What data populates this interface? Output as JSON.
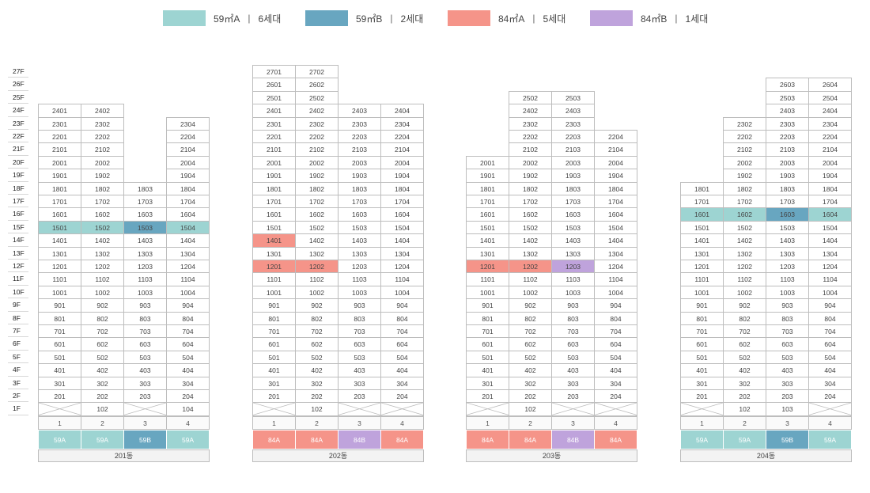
{
  "colors": {
    "59A": "#9dd4d2",
    "59B": "#68a6c0",
    "84A": "#f59489",
    "84B": "#bfa3dc"
  },
  "legend": [
    {
      "type": "59A",
      "label": "59㎡A",
      "units": "6세대"
    },
    {
      "type": "59B",
      "label": "59㎡B",
      "units": "2세대"
    },
    {
      "type": "84A",
      "label": "84㎡A",
      "units": "5세대"
    },
    {
      "type": "84B",
      "label": "84㎡B",
      "units": "1세대"
    }
  ],
  "floors": [
    "27F",
    "26F",
    "25F",
    "24F",
    "23F",
    "22F",
    "21F",
    "20F",
    "19F",
    "18F",
    "17F",
    "16F",
    "15F",
    "14F",
    "13F",
    "12F",
    "11F",
    "10F",
    "9F",
    "8F",
    "7F",
    "6F",
    "5F",
    "4F",
    "3F",
    "2F",
    "1F"
  ],
  "buildings": [
    {
      "name": "201동",
      "line_labels": [
        "1",
        "2",
        "3",
        "4"
      ],
      "line_types": [
        "59A",
        "59A",
        "59B",
        "59A"
      ],
      "line_ranges": [
        [
          2,
          24
        ],
        [
          1,
          24
        ],
        [
          2,
          18
        ],
        [
          1,
          23
        ]
      ],
      "highlights": {
        "1501": "59A",
        "1502": "59A",
        "1503": "59B",
        "1504": "59A"
      }
    },
    {
      "name": "202동",
      "line_labels": [
        "1",
        "2",
        "3",
        "4"
      ],
      "line_types": [
        "84A",
        "84A",
        "84B",
        "84A"
      ],
      "line_ranges": [
        [
          2,
          27
        ],
        [
          1,
          27
        ],
        [
          2,
          24
        ],
        [
          2,
          24
        ]
      ],
      "highlights": {
        "1401": "84A",
        "1201": "84A",
        "1202": "84A"
      }
    },
    {
      "name": "203동",
      "line_labels": [
        "1",
        "2",
        "3",
        "4"
      ],
      "line_types": [
        "84A",
        "84A",
        "84B",
        "84A"
      ],
      "line_ranges": [
        [
          2,
          20
        ],
        [
          1,
          25
        ],
        [
          2,
          25
        ],
        [
          2,
          22
        ]
      ],
      "highlights": {
        "1201": "84A",
        "1202": "84A",
        "1203": "84B"
      }
    },
    {
      "name": "204동",
      "line_labels": [
        "1",
        "2",
        "3",
        "4"
      ],
      "line_types": [
        "59A",
        "59A",
        "59B",
        "59A"
      ],
      "line_ranges": [
        [
          2,
          18
        ],
        [
          1,
          23
        ],
        [
          1,
          26
        ],
        [
          2,
          26
        ]
      ],
      "highlights": {
        "1601": "59A",
        "1602": "59A",
        "1603": "59B",
        "1604": "59A"
      }
    }
  ]
}
